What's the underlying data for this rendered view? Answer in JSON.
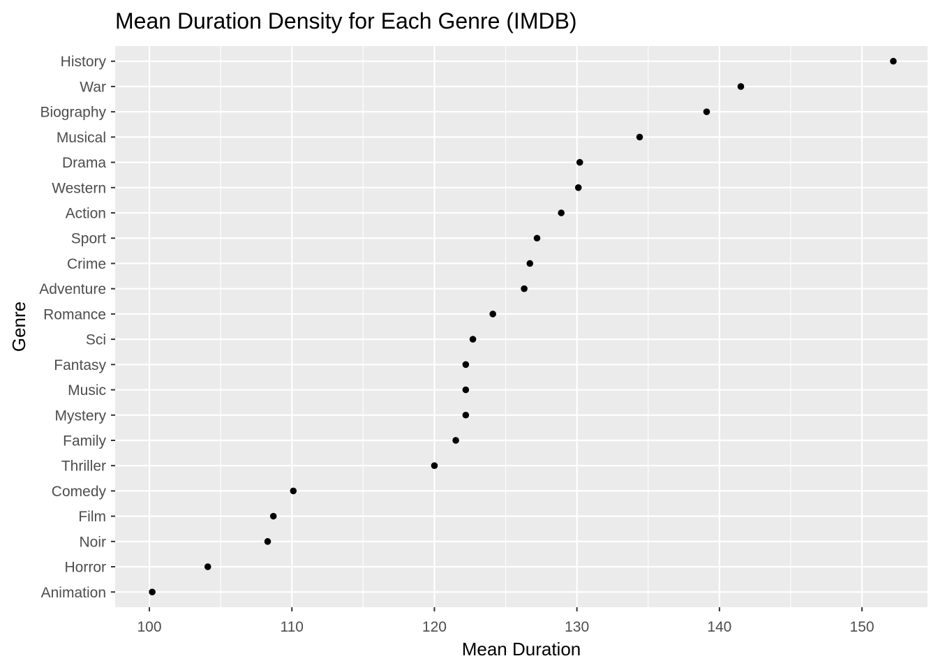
{
  "chart_data": {
    "type": "scatter",
    "title": "Mean Duration Density for Each Genre (IMDB)",
    "xlabel": "Mean Duration",
    "ylabel": "Genre",
    "xlim": [
      97.6,
      154.6
    ],
    "x_ticks": [
      100,
      110,
      120,
      130,
      140,
      150
    ],
    "x_tick_labels": [
      "100",
      "110",
      "120",
      "130",
      "140",
      "150"
    ],
    "grid": true,
    "panel_color": "#ebebeb",
    "point_color": "#000000",
    "categories": [
      "History",
      "War",
      "Biography",
      "Musical",
      "Drama",
      "Western",
      "Action",
      "Sport",
      "Crime",
      "Adventure",
      "Romance",
      "Sci",
      "Fantasy",
      "Music",
      "Mystery",
      "Family",
      "Thriller",
      "Comedy",
      "Film",
      "Noir",
      "Horror",
      "Animation"
    ],
    "values": [
      152.2,
      141.5,
      139.1,
      134.4,
      130.2,
      130.1,
      128.9,
      127.2,
      126.7,
      126.3,
      124.1,
      122.7,
      122.2,
      122.2,
      122.2,
      121.5,
      120.0,
      110.1,
      108.7,
      108.3,
      104.1,
      100.2
    ]
  }
}
